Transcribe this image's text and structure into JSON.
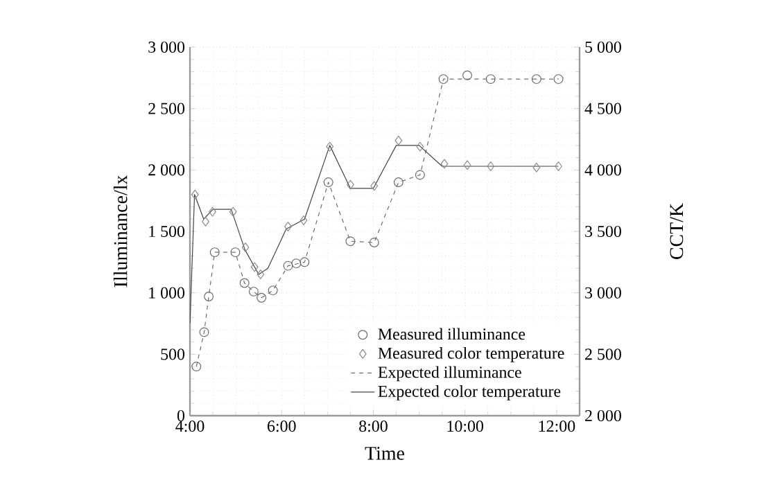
{
  "chart_data": {
    "type": "line",
    "xlabel": "Time",
    "ylabel": "Illuminance/lx",
    "y2label": "CCT/K",
    "xlim": [
      4,
      12.5
    ],
    "xticks": [
      {
        "value": 4,
        "label": "4:00"
      },
      {
        "value": 6,
        "label": "6:00"
      },
      {
        "value": 8,
        "label": "8:00"
      },
      {
        "value": 10,
        "label": "10:00"
      },
      {
        "value": 12,
        "label": "12:00"
      }
    ],
    "ylim": [
      0,
      3000
    ],
    "yticks": [
      0,
      500,
      {
        "value": 1000,
        "label": "1 000"
      },
      {
        "value": 1500,
        "label": "1 500"
      },
      {
        "value": 2000,
        "label": "2 000"
      },
      {
        "value": 2500,
        "label": "2 500"
      },
      {
        "value": 3000,
        "label": "3 000"
      }
    ],
    "y2lim": [
      2000,
      5000
    ],
    "y2ticks": [
      {
        "value": 2000,
        "label": "2 000"
      },
      {
        "value": 2500,
        "label": "2 500"
      },
      {
        "value": 3000,
        "label": "3 000"
      },
      {
        "value": 3500,
        "label": "3 500"
      },
      {
        "value": 4000,
        "label": "4 000"
      },
      {
        "value": 4500,
        "label": "4 500"
      },
      {
        "value": 5000,
        "label": "5 000"
      }
    ],
    "grid": true,
    "legend": "bottom right",
    "series": [
      {
        "name": "Measured illuminance",
        "type": "scatter",
        "marker": "circle",
        "color": "#6e6e6e",
        "x": [
          4.14,
          4.31,
          4.41,
          4.54,
          4.99,
          5.19,
          5.39,
          5.56,
          5.81,
          6.14,
          6.32,
          6.5,
          7.02,
          7.5,
          8.02,
          8.55,
          9.02,
          9.53,
          10.05,
          10.56,
          11.56,
          12.04
        ],
        "values": [
          400,
          680,
          970,
          1330,
          1330,
          1080,
          1010,
          960,
          1020,
          1220,
          1240,
          1250,
          1900,
          1420,
          1410,
          1900,
          1960,
          2740,
          2770,
          2740,
          2740,
          2740
        ]
      },
      {
        "name": "Measured color temperature",
        "type": "scatter",
        "marker": "diamond",
        "axis": "y2",
        "color": "#8a8a8a",
        "x": [
          4.11,
          4.34,
          4.49,
          4.94,
          5.21,
          5.41,
          5.54,
          6.14,
          6.48,
          7.05,
          7.5,
          8.02,
          8.55,
          9.02,
          9.55,
          10.05,
          10.56,
          11.56,
          12.04
        ],
        "values": [
          3800,
          3580,
          3660,
          3660,
          3370,
          3210,
          3150,
          3540,
          3590,
          4190,
          3880,
          3870,
          4240,
          4190,
          4050,
          4040,
          4030,
          4020,
          4030
        ]
      },
      {
        "name": "Expected illuminance",
        "line_style": "dashed",
        "color": "#6e6e6e",
        "x": [
          4.14,
          4.31,
          4.41,
          4.54,
          4.99,
          5.19,
          5.39,
          5.56,
          5.81,
          6.14,
          6.5,
          7.02,
          7.5,
          8.02,
          8.55,
          9.02,
          9.53,
          12.04
        ],
        "values": [
          400,
          680,
          970,
          1330,
          1330,
          1080,
          1010,
          960,
          1020,
          1220,
          1250,
          1900,
          1420,
          1410,
          1900,
          1960,
          2740,
          2740
        ]
      },
      {
        "name": "Expected color temperature",
        "line_style": "solid",
        "axis": "y2",
        "color": "#444444",
        "x": [
          4.0,
          4.1,
          4.3,
          4.5,
          4.9,
          5.2,
          5.5,
          5.7,
          6.1,
          6.5,
          7.05,
          7.5,
          8.0,
          8.5,
          9.0,
          9.5,
          12.04
        ],
        "values": [
          2750,
          3800,
          3600,
          3680,
          3680,
          3350,
          3150,
          3200,
          3520,
          3600,
          4200,
          3850,
          3850,
          4200,
          4200,
          4030,
          4030
        ]
      }
    ]
  }
}
